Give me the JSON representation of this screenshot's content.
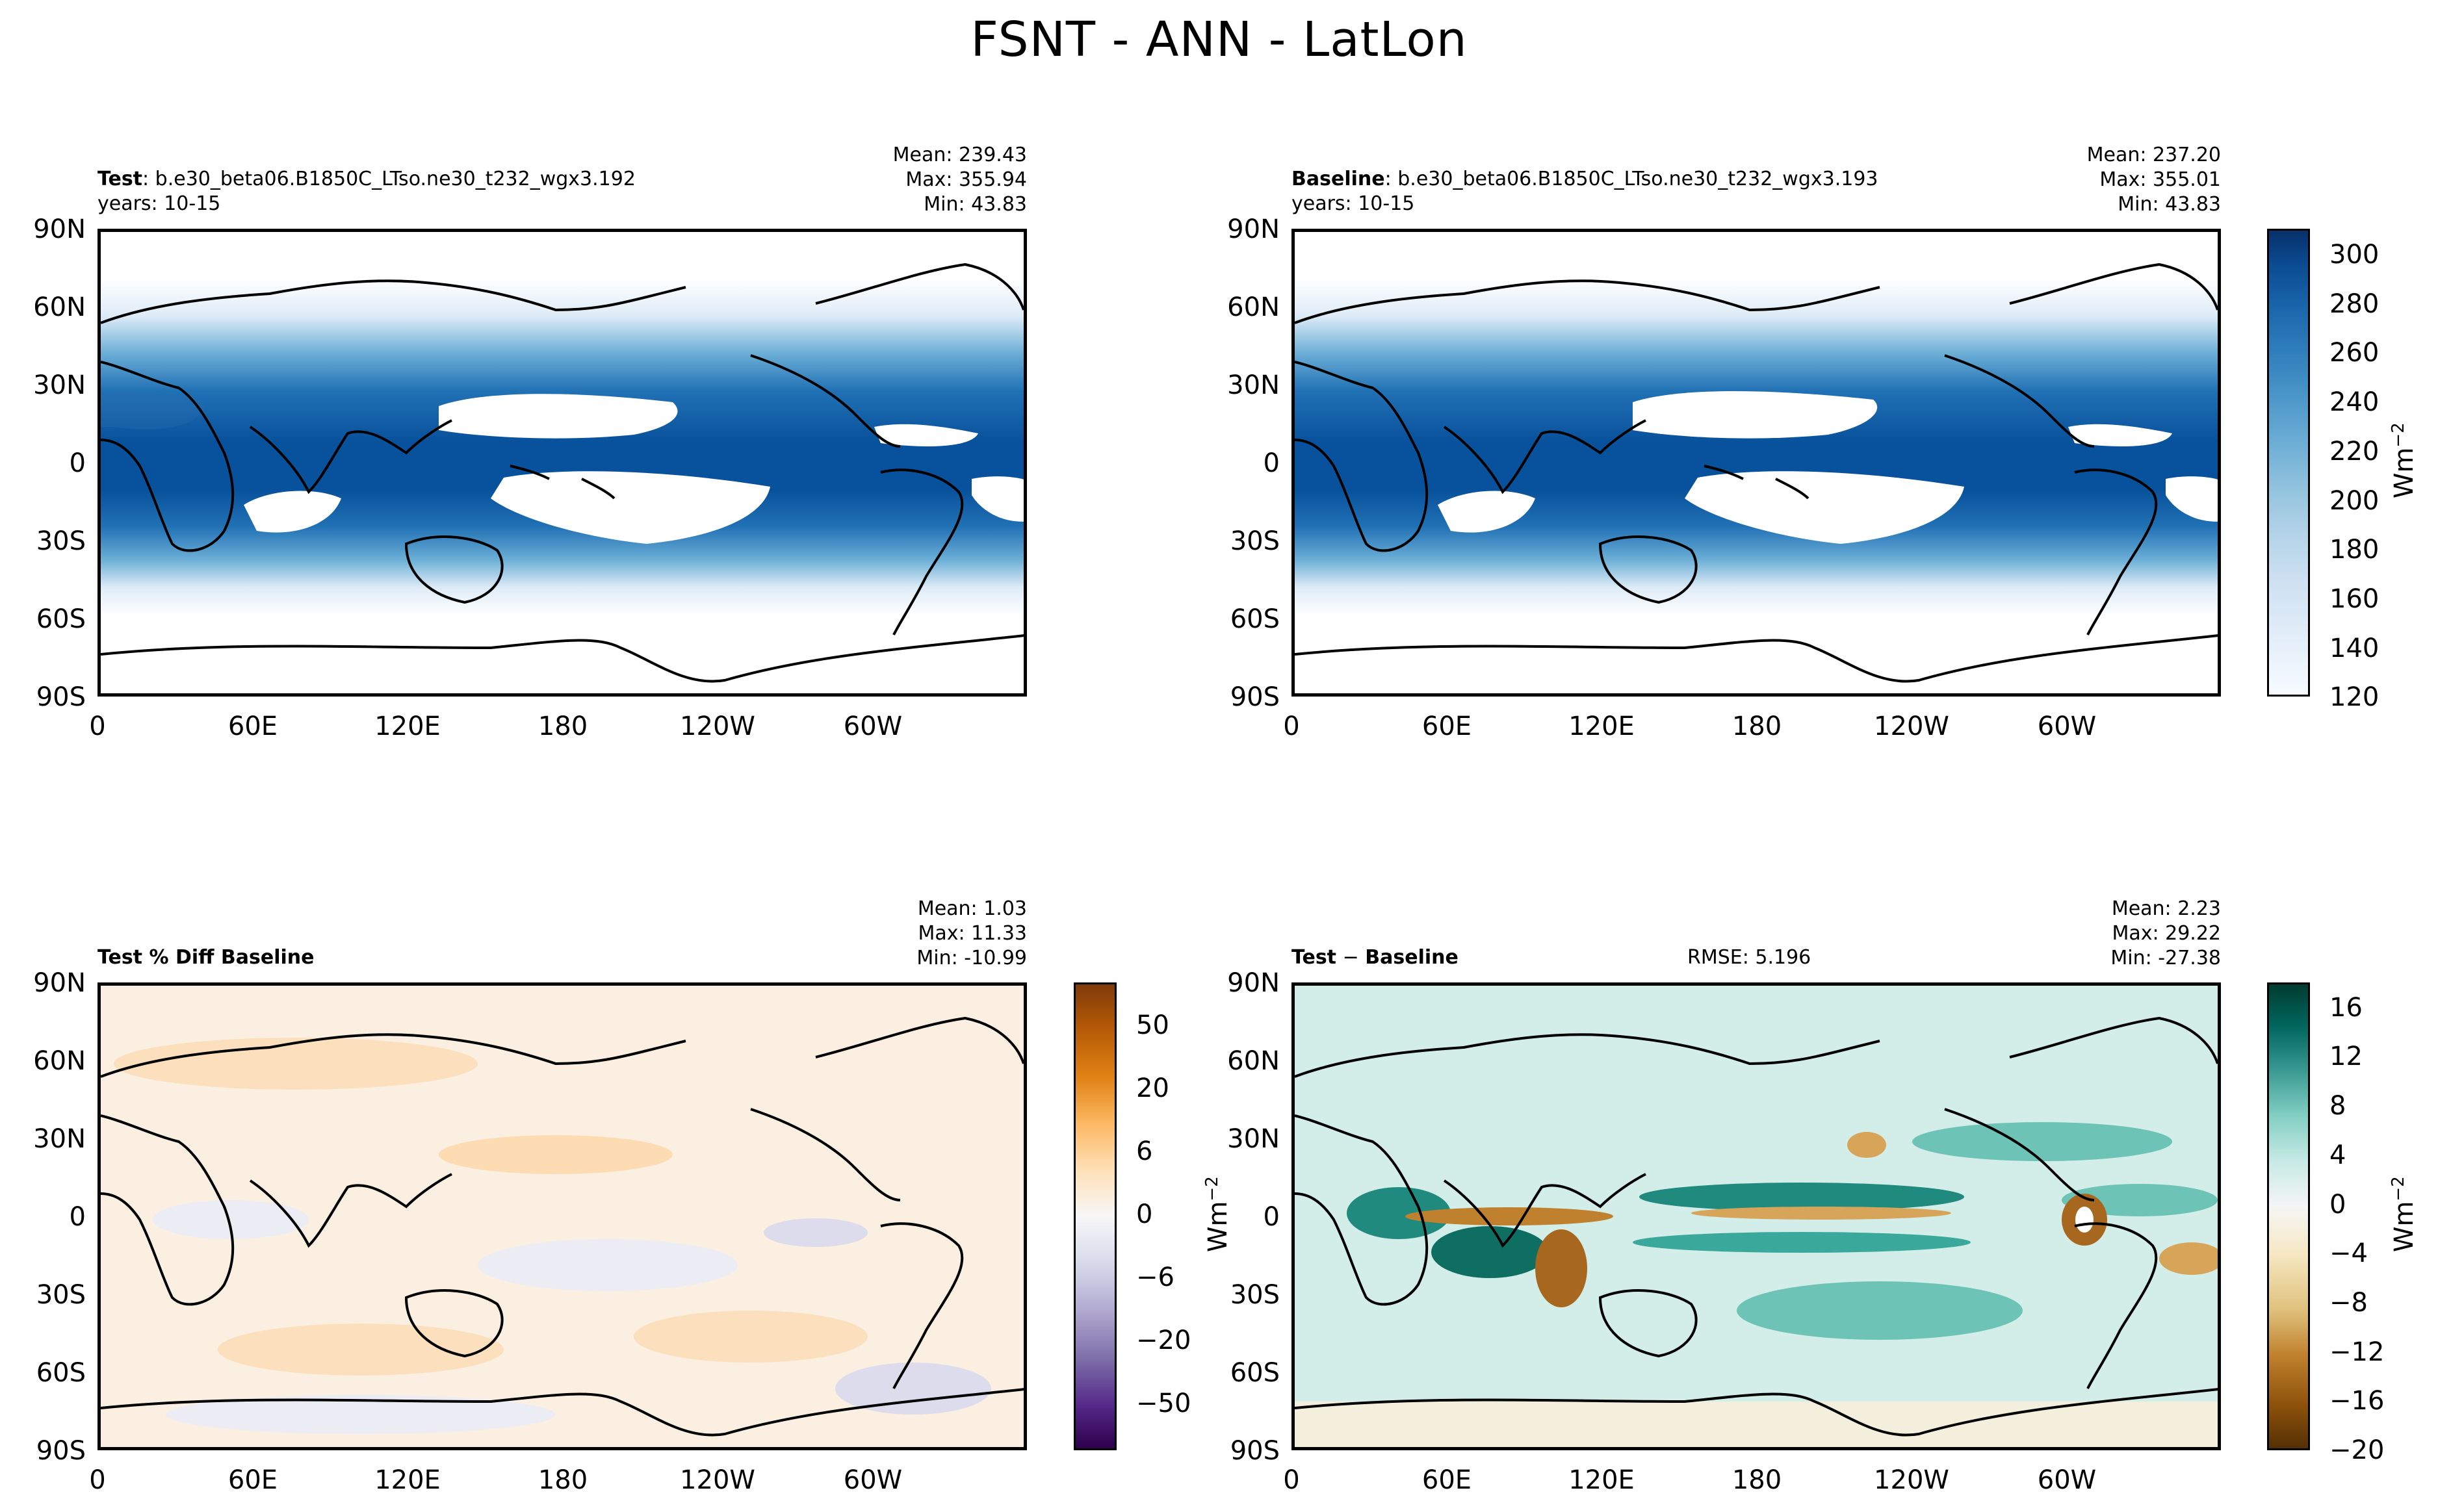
{
  "figure_title": "FSNT - ANN - LatLon",
  "lat_ticks": [
    "90N",
    "60N",
    "30N",
    "0",
    "30S",
    "60S",
    "90S"
  ],
  "lon_ticks": [
    "0",
    "60E",
    "120E",
    "180",
    "120W",
    "60W"
  ],
  "units": "Wm",
  "units_exp": "−2",
  "colors": {
    "ocean_low": "#ffffff",
    "blues": [
      "#f7fbff",
      "#e3eef9",
      "#cfe1f2",
      "#b5d4e9",
      "#93c4de",
      "#6daed5",
      "#4b97c9",
      "#2f7ebc",
      "#1864aa",
      "#0a4a90",
      "#08306b"
    ],
    "purple_orange": [
      "#2d004b",
      "#542788",
      "#8073ac",
      "#b2abd2",
      "#d8daeb",
      "#f7f7f7",
      "#fee0b6",
      "#fdb863",
      "#e08214",
      "#b35806",
      "#7f3b08"
    ],
    "brown_teal": [
      "#543005",
      "#8c510a",
      "#bf812d",
      "#dfc27d",
      "#f6e8c3",
      "#f5f5f5",
      "#c7eae5",
      "#80cdc1",
      "#35978f",
      "#01665e",
      "#003c30"
    ]
  },
  "panels": {
    "test": {
      "label_bold": "Test",
      "label_rest": ": b.e30_beta06.B1850C_LTso.ne30_t232_wgx3.192",
      "years": "years: 10-15",
      "mean": "Mean: 239.43",
      "max": "Max: 355.94",
      "min": "Min: 43.83"
    },
    "baseline": {
      "label_bold": "Baseline",
      "label_rest": ": b.e30_beta06.B1850C_LTso.ne30_t232_wgx3.193",
      "years": "years: 10-15",
      "mean": "Mean: 237.20",
      "max": "Max: 355.01",
      "min": "Min: 43.83"
    },
    "pct_diff": {
      "label_bold": "Test % Diff Baseline",
      "mean": "Mean:  1.03",
      "max": "Max: 11.33",
      "min": "Min: -10.99"
    },
    "diff": {
      "label_bold": "Test",
      "label_minus": " − ",
      "label_bold2": "Baseline",
      "rmse": "RMSE: 5.196",
      "mean": "Mean:  2.23",
      "max": "Max: 29.22",
      "min": "Min: -27.38"
    }
  },
  "chart_data": [
    {
      "type": "heatmap",
      "title": "Test: b.e30_beta06.B1850C_LTso.ne30_t232_wgx3.192",
      "subtitle": "years: 10-15",
      "variable": "FSNT",
      "xlabel": "",
      "ylabel": "",
      "xlim": [
        0,
        360
      ],
      "ylim": [
        -90,
        90
      ],
      "stats": {
        "mean": 239.43,
        "max": 355.94,
        "min": 43.83
      }
    },
    {
      "type": "heatmap",
      "title": "Baseline: b.e30_beta06.B1850C_LTso.ne30_t232_wgx3.193",
      "subtitle": "years: 10-15",
      "variable": "FSNT",
      "xlim": [
        0,
        360
      ],
      "ylim": [
        -90,
        90
      ],
      "stats": {
        "mean": 237.2,
        "max": 355.01,
        "min": 43.83
      },
      "colorbar": {
        "ticks": [
          120,
          140,
          160,
          180,
          200,
          220,
          240,
          260,
          280,
          300
        ],
        "range": [
          120,
          310
        ],
        "units": "Wm^-2"
      }
    },
    {
      "type": "heatmap",
      "title": "Test % Diff Baseline",
      "xlim": [
        0,
        360
      ],
      "ylim": [
        -90,
        90
      ],
      "stats": {
        "mean": 1.03,
        "max": 11.33,
        "min": -10.99
      },
      "colorbar": {
        "ticks": [
          50,
          20,
          6,
          0,
          -6,
          -20,
          -50
        ],
        "levels": [
          -70,
          -50,
          -40,
          -30,
          -20,
          -15,
          -10,
          -8,
          -6,
          -4,
          -2,
          0,
          2,
          4,
          6,
          8,
          10,
          15,
          20,
          30,
          40,
          50,
          70
        ]
      }
    },
    {
      "type": "heatmap",
      "title": "Test − Baseline",
      "xlim": [
        0,
        360
      ],
      "ylim": [
        -90,
        90
      ],
      "stats": {
        "mean": 2.23,
        "max": 29.22,
        "min": -27.38,
        "rmse": 5.196
      },
      "colorbar": {
        "ticks": [
          16,
          12,
          8,
          4,
          0,
          -4,
          -8,
          -12,
          -16,
          -20
        ],
        "range": [
          -20,
          18
        ],
        "units": "Wm^-2"
      }
    }
  ],
  "colorbars": {
    "abs": {
      "labels": [
        "300",
        "280",
        "260",
        "240",
        "220",
        "200",
        "180",
        "160",
        "140",
        "120"
      ]
    },
    "pct": {
      "labels": [
        "50",
        "20",
        "6",
        "0",
        "−6",
        "−20",
        "−50"
      ]
    },
    "diff": {
      "labels": [
        "16",
        "12",
        "8",
        "4",
        "0",
        "−4",
        "−8",
        "−12",
        "−16",
        "−20"
      ]
    }
  }
}
